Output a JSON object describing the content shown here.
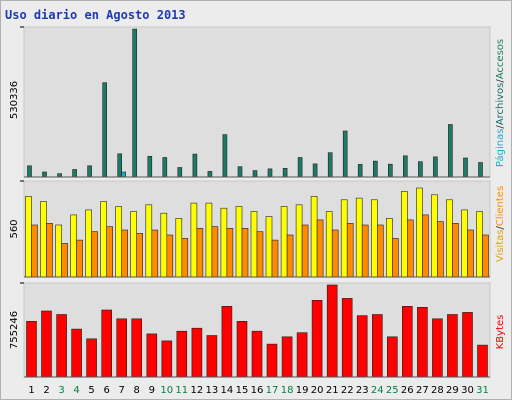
{
  "title": "Uso diario en Agosto 2013",
  "chart_data": {
    "type": "bar",
    "categories": [
      "1",
      "2",
      "3",
      "4",
      "5",
      "6",
      "7",
      "8",
      "9",
      "10",
      "11",
      "12",
      "13",
      "14",
      "15",
      "16",
      "17",
      "18",
      "19",
      "20",
      "21",
      "22",
      "23",
      "24",
      "25",
      "26",
      "27",
      "28",
      "29",
      "30",
      "31"
    ],
    "weekend_days": [
      "3",
      "4",
      "10",
      "11",
      "17",
      "18",
      "24",
      "25",
      "31"
    ],
    "colors": {
      "day_default": "#000000",
      "day_weekend": "#008040",
      "pages": "#1c7b64",
      "hits": "#20a8c8",
      "visits": "#ffff00",
      "visitors": "#ff8c00",
      "bytes": "#ff0000",
      "panel_bg": "#dedede",
      "title": "#1f3ab0"
    },
    "panels": [
      {
        "id": "pages",
        "max_label": "530336",
        "ymax": 530336,
        "right_labels": [
          {
            "text": "Páginas",
            "color": "#20a8c8"
          },
          {
            "text": "Archivos",
            "color": "#1c6b6b"
          },
          {
            "text": "Accesos",
            "color": "#1c7b64"
          }
        ],
        "series": [
          {
            "key": "pages",
            "color": "#1c7b64",
            "values": [
              40000,
              18000,
              12000,
              27000,
              40000,
              338000,
              83000,
              530000,
              74000,
              70000,
              34000,
              82000,
              20000,
              152000,
              37000,
              23000,
              29000,
              31000,
              70000,
              47000,
              87000,
              165000,
              45000,
              57000,
              46000,
              76000,
              55000,
              72000,
              188000,
              68000,
              52000
            ]
          },
          {
            "key": "hits",
            "color": "#20a8c8",
            "values": [
              0,
              0,
              0,
              0,
              0,
              0,
              18000,
              0,
              0,
              0,
              0,
              0,
              0,
              0,
              0,
              0,
              0,
              0,
              0,
              0,
              0,
              0,
              0,
              0,
              0,
              0,
              0,
              0,
              0,
              0,
              0
            ]
          }
        ]
      },
      {
        "id": "visits",
        "max_label": "560",
        "ymax": 560,
        "right_labels": [
          {
            "text": "Visitas",
            "color": "#e0a000"
          },
          {
            "text": "Clientes",
            "color": "#ff8c00"
          }
        ],
        "series": [
          {
            "key": "visits",
            "color": "#ffff00",
            "values": [
              480,
              450,
              310,
              370,
              400,
              450,
              420,
              390,
              430,
              380,
              350,
              440,
              440,
              410,
              420,
              390,
              360,
              420,
              430,
              480,
              390,
              460,
              470,
              460,
              350,
              510,
              530,
              490,
              460,
              400,
              390
            ]
          },
          {
            "key": "visitors",
            "color": "#ff8c00",
            "values": [
              310,
              320,
              200,
              220,
              270,
              300,
              280,
              260,
              280,
              250,
              230,
              290,
              300,
              290,
              290,
              270,
              220,
              250,
              310,
              340,
              280,
              320,
              310,
              310,
              230,
              340,
              370,
              330,
              320,
              280,
              250
            ]
          }
        ]
      },
      {
        "id": "bytes",
        "max_label": "755246",
        "ymax": 755246,
        "right_labels": [
          {
            "text": "KBytes",
            "color": "#ff0000"
          }
        ],
        "series": [
          {
            "key": "bytes",
            "color": "#ff0000",
            "values": [
              457000,
              542000,
              513000,
              393000,
              314000,
              550000,
              478000,
              478000,
              354000,
              296000,
              376000,
              401000,
              341000,
              580000,
              457000,
              376000,
              270000,
              330000,
              364000,
              630000,
              755000,
              645000,
              504000,
              513000,
              330000,
              580000,
              572000,
              478000,
              513000,
              530000,
              262000
            ]
          }
        ]
      }
    ]
  }
}
